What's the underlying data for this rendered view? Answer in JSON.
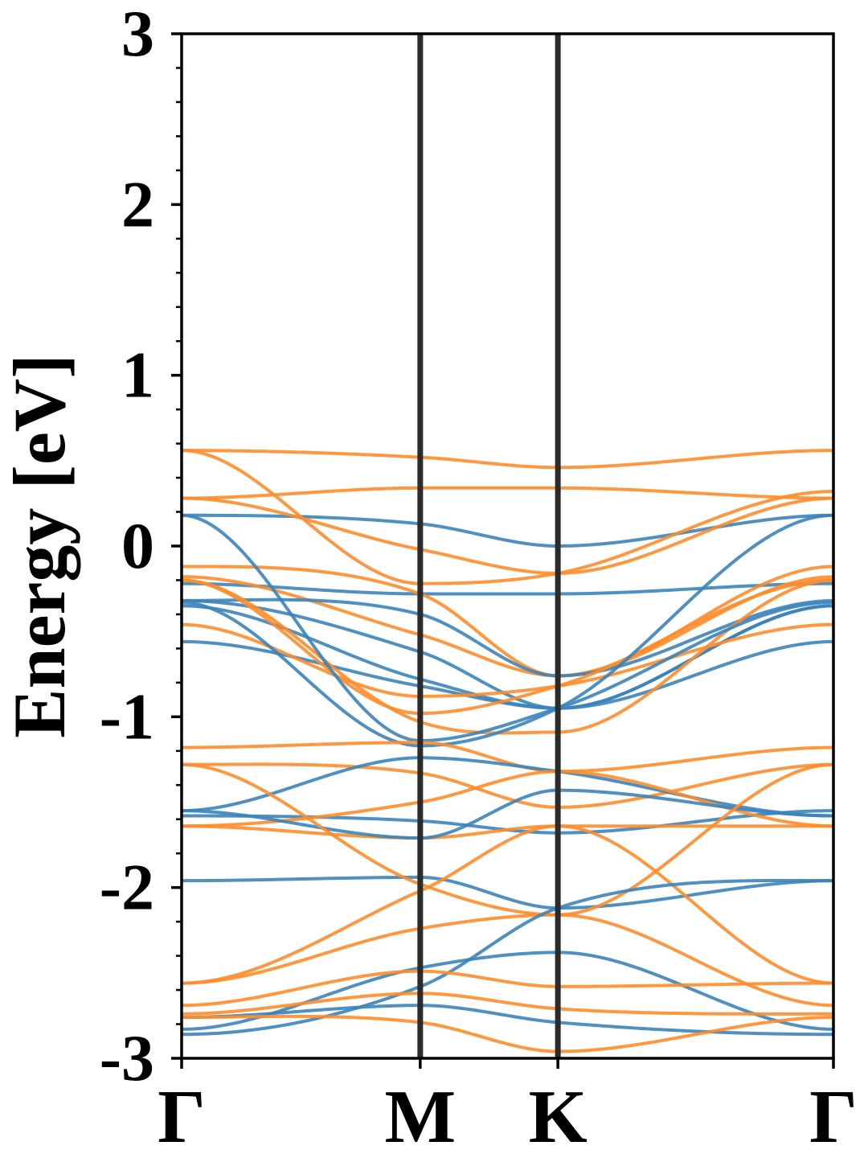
{
  "chart_data": {
    "type": "line",
    "title": "",
    "xlabel": "",
    "ylabel": "Energy [eV]",
    "ylim": [
      -3,
      3
    ],
    "grid": false,
    "legend": "none",
    "kpath": [
      {
        "label": "Γ",
        "pos": 0.0
      },
      {
        "label": "M",
        "pos": 1.0
      },
      {
        "label": "K",
        "pos": 1.577
      },
      {
        "label": "Γ",
        "pos": 2.732
      }
    ],
    "yticks": [
      -3,
      -2,
      -1,
      0,
      1,
      2,
      3
    ],
    "ytick_labels": [
      "-3",
      "-2",
      "-1",
      "0",
      "1",
      "2",
      "3"
    ],
    "minor_yticks_per_major": 5,
    "colors": {
      "spin_blue": "#3b84bb",
      "spin_orange": "#ff8c2a",
      "divider": "#2b2b2b"
    },
    "series": [
      {
        "color": "orange",
        "values": [
          0.56,
          0.52,
          0.46,
          0.56
        ]
      },
      {
        "color": "orange",
        "values": [
          0.28,
          0.34,
          0.34,
          0.28
        ]
      },
      {
        "color": "blue",
        "values": [
          0.18,
          0.13,
          0.0,
          0.18
        ]
      },
      {
        "color": "orange",
        "values": [
          0.28,
          -0.02,
          -0.16,
          0.28
        ]
      },
      {
        "color": "orange",
        "values": [
          0.56,
          -0.22,
          -0.16,
          0.32
        ]
      },
      {
        "color": "blue",
        "values": [
          -0.22,
          -0.28,
          -0.28,
          -0.22
        ]
      },
      {
        "color": "orange",
        "values": [
          -0.12,
          -0.28,
          -0.76,
          -0.12
        ]
      },
      {
        "color": "orange",
        "values": [
          -0.18,
          -0.52,
          -0.76,
          -0.18
        ]
      },
      {
        "color": "blue",
        "values": [
          -0.32,
          -0.4,
          -0.76,
          -0.32
        ]
      },
      {
        "color": "blue",
        "values": [
          -0.32,
          -0.62,
          -0.95,
          -0.35
        ]
      },
      {
        "color": "blue",
        "values": [
          -0.35,
          -0.78,
          -0.95,
          -0.35
        ]
      },
      {
        "color": "blue",
        "values": [
          -0.56,
          -0.82,
          -0.95,
          -0.56
        ]
      },
      {
        "color": "orange",
        "values": [
          -0.46,
          -0.88,
          -0.82,
          -0.46
        ]
      },
      {
        "color": "orange",
        "values": [
          -0.2,
          -0.98,
          -0.82,
          -0.2
        ]
      },
      {
        "color": "orange",
        "values": [
          -0.2,
          -1.03,
          -1.09,
          -0.2
        ]
      },
      {
        "color": "blue",
        "values": [
          0.18,
          -1.14,
          -0.95,
          -0.33
        ]
      },
      {
        "color": "blue",
        "values": [
          -0.33,
          -1.17,
          -0.95,
          0.18
        ]
      },
      {
        "color": "orange",
        "values": [
          -1.18,
          -1.15,
          -1.32,
          -1.18
        ]
      },
      {
        "color": "orange",
        "values": [
          -1.28,
          -1.33,
          -1.53,
          -1.28
        ]
      },
      {
        "color": "blue",
        "values": [
          -1.55,
          -1.24,
          -1.32,
          -1.58
        ]
      },
      {
        "color": "blue",
        "values": [
          -1.58,
          -1.61,
          -1.68,
          -1.55
        ]
      },
      {
        "color": "orange",
        "values": [
          -1.64,
          -1.5,
          -1.32,
          -1.64
        ]
      },
      {
        "color": "orange",
        "values": [
          -1.64,
          -1.71,
          -1.64,
          -1.64
        ]
      },
      {
        "color": "blue",
        "values": [
          -1.55,
          -1.71,
          -1.43,
          -1.58
        ]
      },
      {
        "color": "blue",
        "values": [
          -1.96,
          -1.94,
          -2.12,
          -1.96
        ]
      },
      {
        "color": "orange",
        "values": [
          -1.28,
          -1.98,
          -2.16,
          -1.28
        ]
      },
      {
        "color": "orange",
        "values": [
          -2.56,
          -2.02,
          -1.64,
          -2.56
        ]
      },
      {
        "color": "orange",
        "values": [
          -2.56,
          -2.24,
          -2.16,
          -2.69
        ]
      },
      {
        "color": "blue",
        "values": [
          -2.83,
          -2.47,
          -2.38,
          -2.83
        ]
      },
      {
        "color": "blue",
        "values": [
          -2.86,
          -2.58,
          -2.12,
          -1.96
        ]
      },
      {
        "color": "orange",
        "values": [
          -2.69,
          -2.49,
          -2.58,
          -2.56
        ]
      },
      {
        "color": "orange",
        "values": [
          -2.74,
          -2.62,
          -2.71,
          -2.74
        ]
      },
      {
        "color": "blue",
        "values": [
          -2.76,
          -2.69,
          -2.79,
          -2.86
        ]
      },
      {
        "color": "orange",
        "values": [
          -2.76,
          -2.79,
          -2.96,
          -2.76
        ]
      }
    ]
  }
}
